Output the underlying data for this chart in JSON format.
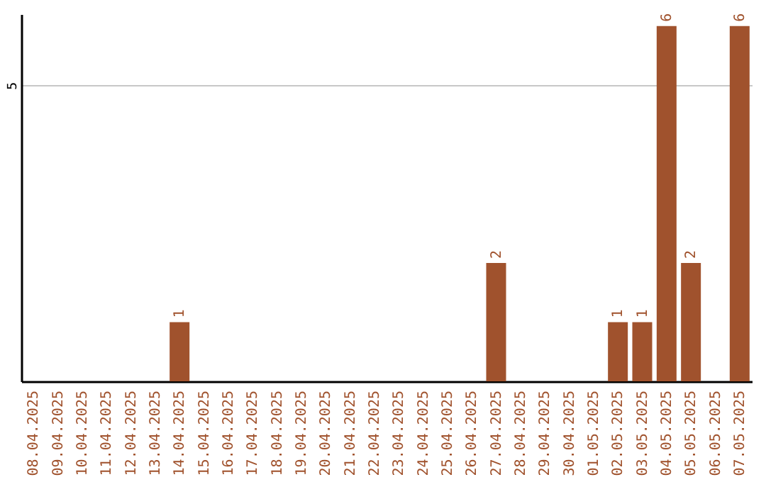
{
  "chart_data": {
    "type": "bar",
    "categories": [
      "08.04.2025",
      "09.04.2025",
      "10.04.2025",
      "11.04.2025",
      "12.04.2025",
      "13.04.2025",
      "14.04.2025",
      "15.04.2025",
      "16.04.2025",
      "17.04.2025",
      "18.04.2025",
      "19.04.2025",
      "20.04.2025",
      "21.04.2025",
      "22.04.2025",
      "23.04.2025",
      "24.04.2025",
      "25.04.2025",
      "26.04.2025",
      "27.04.2025",
      "28.04.2025",
      "29.04.2025",
      "30.04.2025",
      "01.05.2025",
      "02.05.2025",
      "03.05.2025",
      "04.05.2025",
      "05.05.2025",
      "06.05.2025",
      "07.05.2025"
    ],
    "values": [
      0,
      0,
      0,
      0,
      0,
      0,
      1,
      0,
      0,
      0,
      0,
      0,
      0,
      0,
      0,
      0,
      0,
      0,
      0,
      2,
      0,
      0,
      0,
      0,
      1,
      1,
      6,
      2,
      0,
      6
    ],
    "value_labels": [
      null,
      null,
      null,
      null,
      null,
      null,
      "1",
      null,
      null,
      null,
      null,
      null,
      null,
      null,
      null,
      null,
      null,
      null,
      null,
      "2",
      null,
      null,
      null,
      null,
      "1",
      "1",
      "6",
      "2",
      null,
      "6"
    ],
    "color": "#a0522d",
    "ylim": [
      0,
      6.2
    ],
    "yticks": [
      5
    ],
    "grid": "y"
  }
}
